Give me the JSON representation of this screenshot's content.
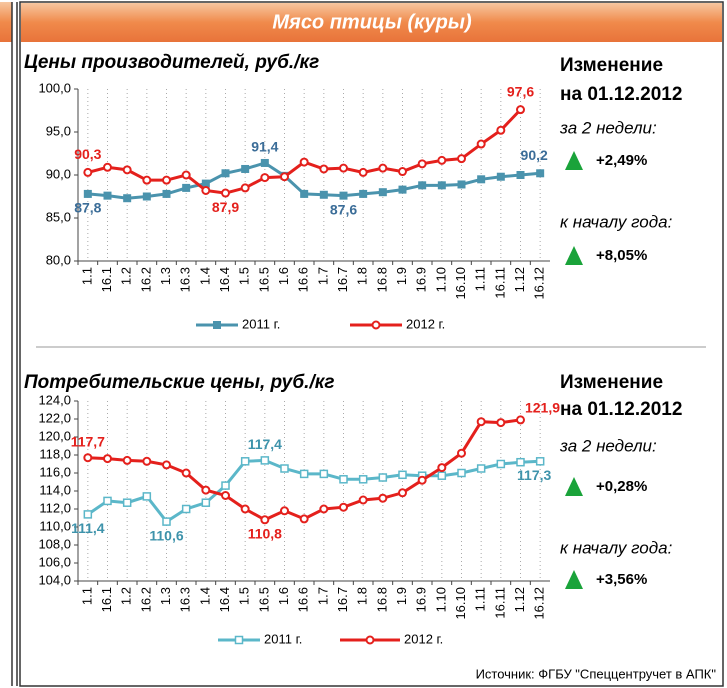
{
  "header": {
    "title": "Мясо птицы (куры)"
  },
  "source": "Источник: ФГБУ \"Спеццентручет в АПК\"",
  "chart_data": [
    {
      "type": "line",
      "title": "Цены производителей, руб./кг",
      "categories": [
        "1.1",
        "16.1",
        "1.2",
        "16.2",
        "1.3",
        "16.3",
        "1.4",
        "16.4",
        "1.5",
        "16.5",
        "1.6",
        "16.6",
        "1.7",
        "16.7",
        "1.8",
        "16.8",
        "1.9",
        "16.9",
        "1.10",
        "16.10",
        "1.11",
        "16.11",
        "1.12",
        "16.12"
      ],
      "series": [
        {
          "name": "2011 г.",
          "color": "#4a93ad",
          "label_color": "#3b6d98",
          "marker": "square",
          "values": [
            87.8,
            87.6,
            87.3,
            87.5,
            87.8,
            88.5,
            89.0,
            90.2,
            90.7,
            91.4,
            89.9,
            87.8,
            87.7,
            87.6,
            87.8,
            88.0,
            88.3,
            88.8,
            88.8,
            88.9,
            89.5,
            89.8,
            90.0,
            90.2
          ],
          "value_labels": [
            "87,8",
            null,
            null,
            null,
            null,
            null,
            null,
            null,
            null,
            "91,4",
            null,
            null,
            null,
            "87,6",
            null,
            null,
            null,
            null,
            null,
            null,
            null,
            null,
            null,
            "90,2"
          ]
        },
        {
          "name": "2012 г.",
          "color": "#e4201c",
          "label_color": "#e4201c",
          "marker": "circle",
          "values": [
            90.3,
            90.9,
            90.6,
            89.4,
            89.4,
            90.0,
            88.2,
            87.9,
            88.5,
            89.7,
            89.8,
            91.5,
            90.7,
            90.8,
            90.3,
            90.8,
            90.4,
            91.3,
            91.7,
            91.9,
            93.6,
            95.2,
            97.6,
            null
          ],
          "value_labels": [
            "90,3",
            null,
            null,
            null,
            null,
            null,
            null,
            "87,9",
            null,
            null,
            null,
            null,
            null,
            null,
            null,
            null,
            null,
            null,
            null,
            null,
            null,
            null,
            "97,6",
            null
          ]
        }
      ],
      "ylim": [
        80,
        100
      ],
      "yticks": [
        {
          "value": 80,
          "label": "80,0"
        },
        {
          "value": 85,
          "label": "85,0"
        },
        {
          "value": 90,
          "label": "90,0"
        },
        {
          "value": 95,
          "label": "95,0"
        },
        {
          "value": 100,
          "label": "100,0"
        }
      ],
      "grid": true,
      "legend": "bottom",
      "panel": {
        "heading": "Изменение",
        "date": "на 01.12.2012",
        "period1": "за 2 недели:",
        "change1": "+2,49%",
        "period2": "к началу года:",
        "change2": "+8,05%",
        "arrow_color": "#1aa33a"
      }
    },
    {
      "type": "line",
      "title": "Потребительские цены, руб./кг",
      "categories": [
        "1.1",
        "16.1",
        "1.2",
        "16.2",
        "1.3",
        "16.3",
        "1.4",
        "16.4",
        "1.5",
        "16.5",
        "1.6",
        "16.6",
        "1.7",
        "16.7",
        "1.8",
        "16.8",
        "1.9",
        "16.9",
        "1.10",
        "16.10",
        "1.11",
        "16.11",
        "1.12",
        "16.12"
      ],
      "series": [
        {
          "name": "2011 г.",
          "color": "#5bb7c9",
          "label_color": "#3e93ab",
          "marker": "square-open",
          "values": [
            111.4,
            112.9,
            112.7,
            113.4,
            110.6,
            112.0,
            112.7,
            114.6,
            117.3,
            117.4,
            116.5,
            115.9,
            115.9,
            115.3,
            115.3,
            115.5,
            115.8,
            115.7,
            115.7,
            116.0,
            116.5,
            117.0,
            117.2,
            117.3
          ],
          "value_labels": [
            "111,4",
            null,
            null,
            null,
            "110,6",
            null,
            null,
            null,
            null,
            "117,4",
            null,
            null,
            null,
            null,
            null,
            null,
            null,
            null,
            null,
            null,
            null,
            null,
            null,
            "117,3"
          ]
        },
        {
          "name": "2012 г.",
          "color": "#e4201c",
          "label_color": "#e4201c",
          "marker": "circle",
          "values": [
            117.7,
            117.6,
            117.4,
            117.3,
            116.9,
            116.0,
            114.1,
            113.5,
            112.0,
            110.8,
            111.8,
            110.9,
            112.0,
            112.2,
            113.0,
            113.2,
            113.8,
            115.2,
            116.6,
            118.2,
            121.7,
            121.6,
            121.9,
            null
          ],
          "value_labels": [
            "117,7",
            null,
            null,
            null,
            null,
            null,
            null,
            null,
            null,
            "110,8",
            null,
            null,
            null,
            null,
            null,
            null,
            null,
            null,
            null,
            null,
            null,
            null,
            "121,9",
            null
          ]
        }
      ],
      "ylim": [
        104,
        124
      ],
      "yticks": [
        {
          "value": 104,
          "label": "104,0"
        },
        {
          "value": 106,
          "label": "106,0"
        },
        {
          "value": 108,
          "label": "108,0"
        },
        {
          "value": 110,
          "label": "110,0"
        },
        {
          "value": 112,
          "label": "112,0"
        },
        {
          "value": 114,
          "label": "114,0"
        },
        {
          "value": 116,
          "label": "116,0"
        },
        {
          "value": 118,
          "label": "118,0"
        },
        {
          "value": 120,
          "label": "120,0"
        },
        {
          "value": 122,
          "label": "122,0"
        },
        {
          "value": 124,
          "label": "124,0"
        }
      ],
      "grid": true,
      "legend": "bottom",
      "panel": {
        "heading": "Изменение",
        "date": "на 01.12.2012",
        "period1": "за 2 недели:",
        "change1": "+0,28%",
        "period2": "к началу года:",
        "change2": "+3,56%",
        "arrow_color": "#1aa33a"
      }
    }
  ]
}
